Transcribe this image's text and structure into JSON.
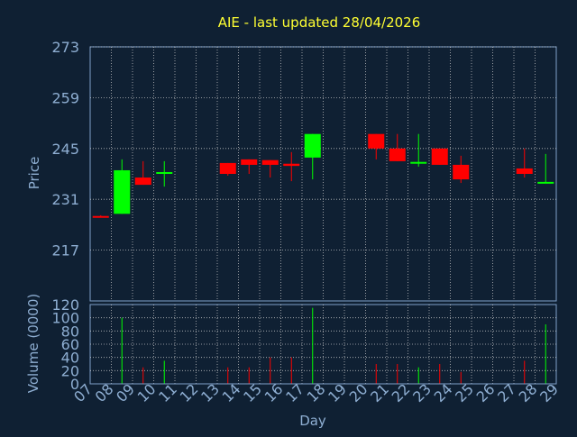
{
  "chart_data": {
    "type": "candlestick",
    "title": "AIE - last updated 28/04/2026",
    "colors": {
      "background": "#0f2033",
      "axis": "#7f9fc8",
      "grid": "#d8d8d8",
      "up": "#00ff00",
      "down": "#ff0000",
      "text": "#8eaed2",
      "title": "#ffff33"
    },
    "price_panel": {
      "ylabel": "Price",
      "yticks": [
        "273",
        "259",
        "245",
        "231",
        "217"
      ],
      "ylim": [
        203,
        273
      ]
    },
    "volume_panel": {
      "ylabel": "Volume (0000)",
      "yticks": [
        "120",
        "100",
        "80",
        "60",
        "40",
        "20",
        "0"
      ],
      "ylim": [
        0,
        120
      ]
    },
    "x_axis": {
      "xlabel": "Day",
      "ticks": [
        "07",
        "08",
        "09",
        "10",
        "11",
        "12",
        "13",
        "14",
        "15",
        "16",
        "17",
        "18",
        "19",
        "20",
        "21",
        "22",
        "23",
        "24",
        "25",
        "26",
        "27",
        "28",
        "29"
      ]
    },
    "candles": [
      {
        "day": "07",
        "open": 226.4,
        "close": 226.2,
        "high": 226.6,
        "low": 226.0,
        "volume": 0
      },
      {
        "day": "08",
        "open": 227.0,
        "close": 239.0,
        "high": 242.0,
        "low": 227.0,
        "volume": 100
      },
      {
        "day": "09",
        "open": 237.0,
        "close": 235.0,
        "high": 241.5,
        "low": 235.0,
        "volume": 25
      },
      {
        "day": "10",
        "open": 238.0,
        "close": 238.5,
        "high": 241.5,
        "low": 234.5,
        "volume": 35
      },
      {
        "day": "13",
        "open": 241.0,
        "close": 238.0,
        "high": 241.0,
        "low": 237.5,
        "volume": 25
      },
      {
        "day": "14",
        "open": 242.0,
        "close": 240.5,
        "high": 242.0,
        "low": 238.0,
        "volume": 25
      },
      {
        "day": "15",
        "open": 241.8,
        "close": 240.5,
        "high": 241.8,
        "low": 237.0,
        "volume": 40
      },
      {
        "day": "16",
        "open": 240.8,
        "close": 240.2,
        "high": 244.0,
        "low": 236.0,
        "volume": 40
      },
      {
        "day": "17",
        "open": 242.5,
        "close": 249.0,
        "high": 249.0,
        "low": 236.5,
        "volume": 115
      },
      {
        "day": "20",
        "open": 249.0,
        "close": 245.0,
        "high": 249.0,
        "low": 242.0,
        "volume": 30
      },
      {
        "day": "21",
        "open": 245.0,
        "close": 241.5,
        "high": 249.0,
        "low": 241.5,
        "volume": 30
      },
      {
        "day": "22",
        "open": 241.0,
        "close": 241.3,
        "high": 249.0,
        "low": 240.0,
        "volume": 25
      },
      {
        "day": "23",
        "open": 245.0,
        "close": 240.5,
        "high": 245.0,
        "low": 240.5,
        "volume": 30
      },
      {
        "day": "24",
        "open": 240.5,
        "close": 236.5,
        "high": 243.0,
        "low": 235.5,
        "volume": 18
      },
      {
        "day": "27",
        "open": 239.5,
        "close": 238.0,
        "high": 245.0,
        "low": 237.0,
        "volume": 35
      },
      {
        "day": "28",
        "open": 235.5,
        "close": 235.8,
        "high": 243.5,
        "low": 235.5,
        "volume": 90
      }
    ]
  }
}
